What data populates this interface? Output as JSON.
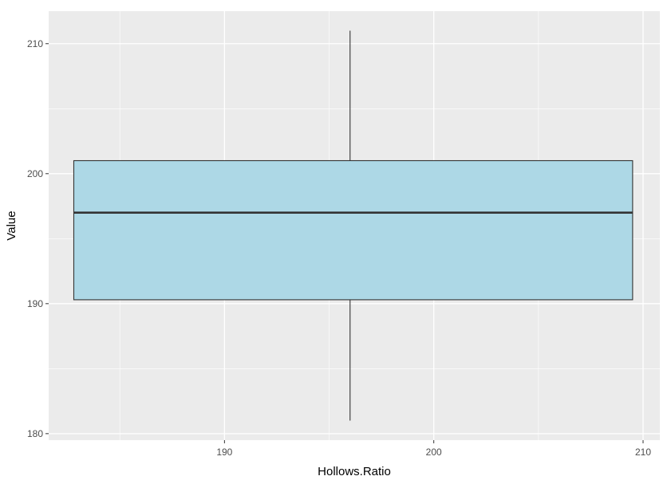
{
  "chart_data": {
    "type": "boxplot",
    "title": "",
    "xlabel": "Hollows.Ratio",
    "ylabel": "Value",
    "xlim": [
      181.6,
      210.8
    ],
    "ylim": [
      179.5,
      212.5
    ],
    "x_ticks": [
      190,
      200,
      210
    ],
    "y_ticks": [
      180,
      190,
      200,
      210
    ],
    "grid": true,
    "box": {
      "x_left": 182.8,
      "x_right": 209.5,
      "whisker_x": 196.0,
      "min": 181,
      "q1": 190.3,
      "median": 197,
      "q3": 201,
      "max": 211
    },
    "colors": {
      "panel_bg": "#ebebeb",
      "grid_major": "#ffffff",
      "box_fill": "#add8e6",
      "box_stroke": "#333333",
      "median_stroke": "#333333",
      "tick_text": "#4d4d4d"
    }
  }
}
